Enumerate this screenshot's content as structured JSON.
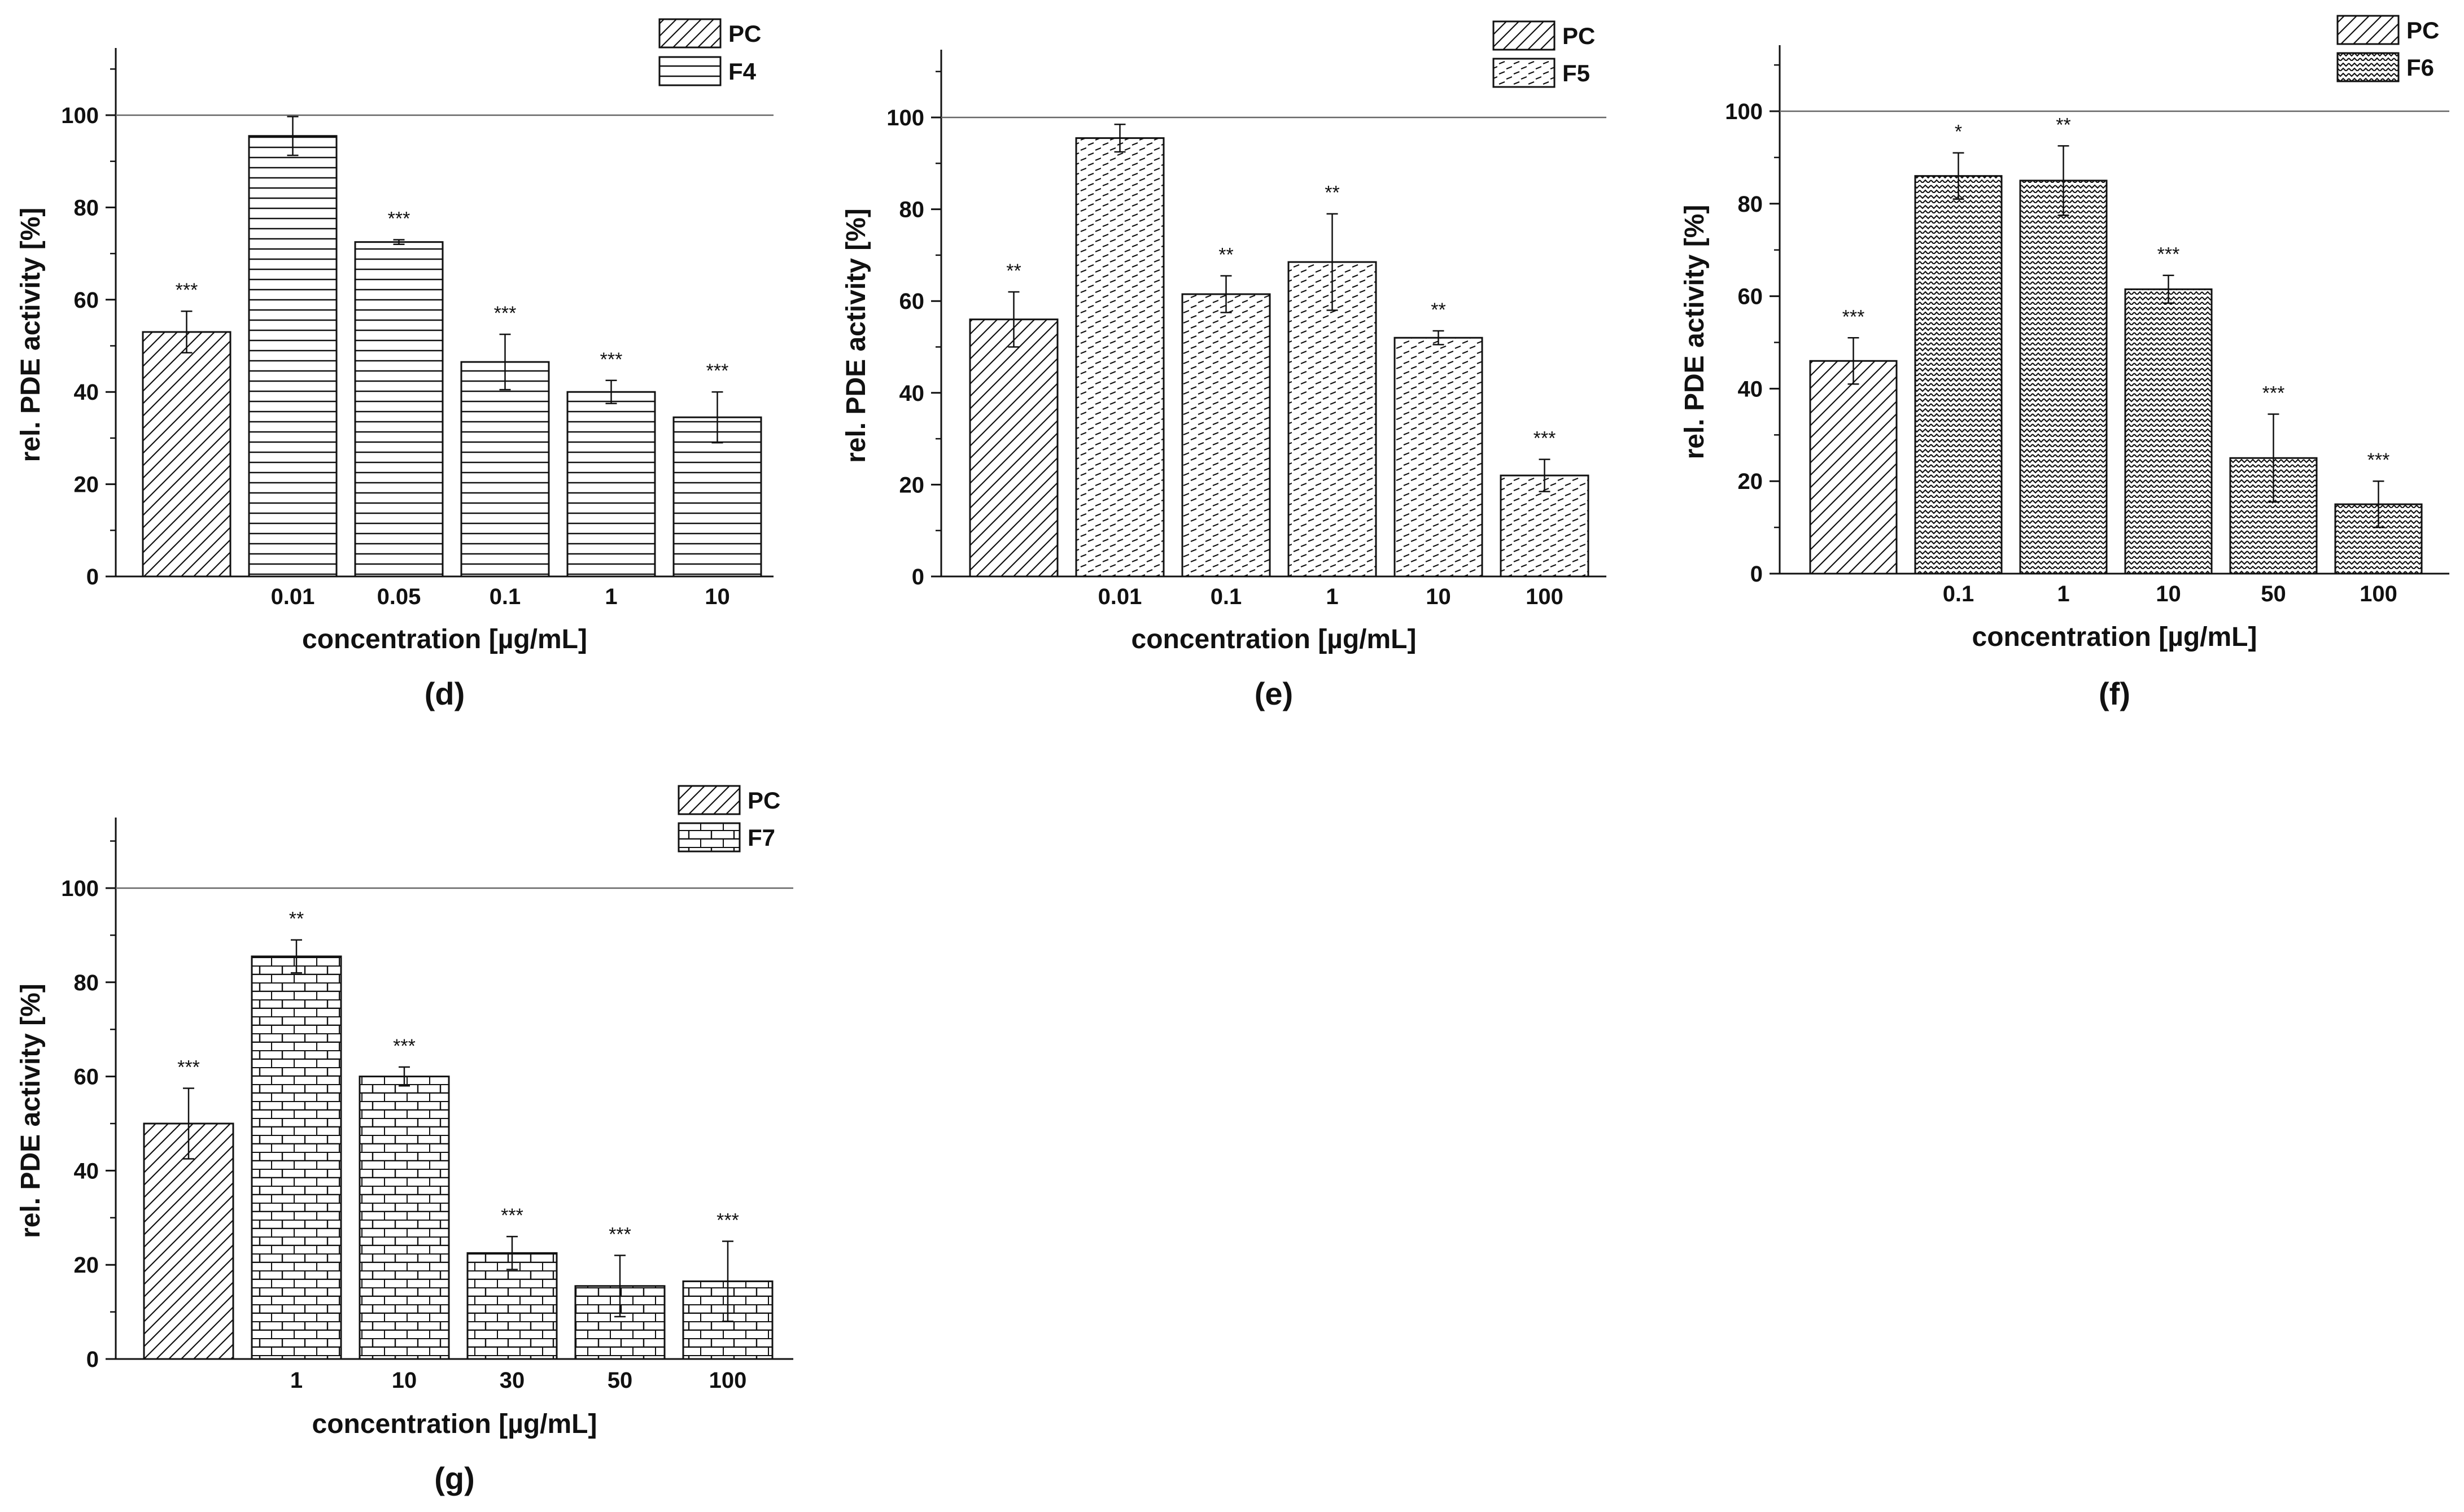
{
  "chart_data": [
    {
      "type": "bar",
      "panel_label": "(d)",
      "xlabel": "concentration [µg/mL]",
      "ylabel": "rel. PDE activity [%]",
      "ylim": [
        0,
        115
      ],
      "yticks": [
        0,
        20,
        40,
        60,
        80,
        100
      ],
      "reference_line": 100,
      "legend": [
        "PC",
        "F4"
      ],
      "categories": [
        "",
        "0.01",
        "0.05",
        "0.1",
        "1",
        "10"
      ],
      "values": [
        53,
        95.5,
        72.5,
        46.5,
        40,
        34.5
      ],
      "errors": [
        4.5,
        4.2,
        0.5,
        6,
        2.5,
        5.5
      ],
      "significance": [
        "***",
        "",
        "***",
        "***",
        "***",
        "***"
      ]
    },
    {
      "type": "bar",
      "panel_label": "(e)",
      "xlabel": "concentration [µg/mL]",
      "ylabel": "rel. PDE activity [%]",
      "ylim": [
        0,
        115
      ],
      "yticks": [
        0,
        20,
        40,
        60,
        80,
        100
      ],
      "reference_line": 100,
      "legend": [
        "PC",
        "F5"
      ],
      "categories": [
        "",
        "0.01",
        "0.1",
        "1",
        "10",
        "100"
      ],
      "values": [
        56,
        95.5,
        61.5,
        68.5,
        52,
        22
      ],
      "errors": [
        6,
        3,
        4,
        10.5,
        1.5,
        3.5
      ],
      "significance": [
        "**",
        "",
        "**",
        "**",
        "**",
        "***"
      ]
    },
    {
      "type": "bar",
      "panel_label": "(f)",
      "xlabel": "concentration [µg/mL]",
      "ylabel": "rel. PDE activity [%]",
      "ylim": [
        0,
        115
      ],
      "yticks": [
        0,
        20,
        40,
        60,
        80,
        100
      ],
      "reference_line": 100,
      "legend": [
        "PC",
        "F6"
      ],
      "categories": [
        "",
        "0.1",
        "1",
        "10",
        "50",
        "100"
      ],
      "values": [
        46,
        86,
        85,
        61.5,
        25,
        15
      ],
      "errors": [
        5,
        5,
        7.5,
        3,
        9.5,
        5
      ],
      "significance": [
        "***",
        "*",
        "**",
        "***",
        "***",
        "***"
      ]
    },
    {
      "type": "bar",
      "panel_label": "(g)",
      "xlabel": "concentration [µg/mL]",
      "ylabel": "rel. PDE activity [%]",
      "ylim": [
        0,
        115
      ],
      "yticks": [
        0,
        20,
        40,
        60,
        80,
        100
      ],
      "reference_line": 100,
      "legend": [
        "PC",
        "F7"
      ],
      "categories": [
        "",
        "1",
        "10",
        "30",
        "50",
        "100"
      ],
      "values": [
        50,
        85.5,
        60,
        22.5,
        15.5,
        16.5
      ],
      "errors": [
        7.5,
        3.5,
        2,
        3.5,
        6.5,
        8.5
      ],
      "significance": [
        "***",
        "**",
        "***",
        "***",
        "***",
        "***"
      ]
    }
  ]
}
